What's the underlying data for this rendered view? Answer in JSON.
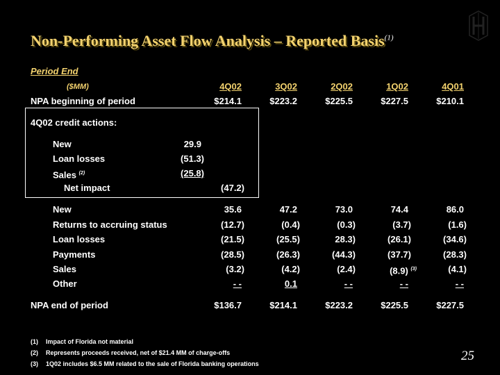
{
  "title": "Non-Performing Asset Flow Analysis – Reported Basis",
  "title_note": "(1)",
  "period_end": "Period End",
  "units": "($MM)",
  "columns": [
    "4Q02",
    "3Q02",
    "2Q02",
    "1Q02",
    "4Q01"
  ],
  "npa_begin": {
    "label": "NPA beginning of period",
    "values": [
      "$214.1",
      "$223.2",
      "$225.5",
      "$227.5",
      "$210.1"
    ]
  },
  "credit_actions": {
    "heading": "4Q02 credit actions:",
    "new": {
      "label": "New",
      "value": "29.9"
    },
    "loan_losses": {
      "label": "Loan losses",
      "value": "(51.3)"
    },
    "sales": {
      "label": "Sales",
      "note": "(2)",
      "value": "(25.8)"
    },
    "net_impact": {
      "label": "Net impact",
      "value": "(47.2)"
    }
  },
  "flows": [
    {
      "label": "New",
      "values": [
        "35.6",
        "47.2",
        "73.0",
        "74.4",
        "86.0"
      ]
    },
    {
      "label": "Returns to accruing status",
      "values": [
        "(12.7)",
        "(0.4)",
        "(0.3)",
        "(3.7)",
        "(1.6)"
      ]
    },
    {
      "label": "Loan losses",
      "values": [
        "(21.5)",
        "(25.5)",
        "28.3)",
        "(26.1)",
        "(34.6)"
      ]
    },
    {
      "label": "Payments",
      "values": [
        "(28.5)",
        "(26.3)",
        "(44.3)",
        "(37.7)",
        "(28.3)"
      ]
    },
    {
      "label": "Sales",
      "values": [
        "(3.2)",
        "(4.2)",
        "(2.4)",
        "(8.9)",
        "(4.1)"
      ],
      "note_col4": "(3)"
    },
    {
      "label": "Other",
      "values": [
        "- -",
        "0.1",
        "- -",
        "- -",
        "- -"
      ]
    }
  ],
  "npa_end": {
    "label": "NPA end of period",
    "values": [
      "$136.7",
      "$214.1",
      "$223.2",
      "$225.5",
      "$227.5"
    ]
  },
  "footnotes": [
    {
      "num": "(1)",
      "text": "Impact of Florida not material"
    },
    {
      "num": "(2)",
      "text": "Represents proceeds received, net of $21.4 MM of charge-offs"
    },
    {
      "num": "(3)",
      "text": "1Q02 includes $6.5 MM related to the sale of Florida banking operations"
    }
  ],
  "page_number": "25",
  "logo_icon": "huntington-logo-icon",
  "colors": {
    "accent": "#f3d26e",
    "background": "#000000",
    "text": "#ffffff"
  }
}
